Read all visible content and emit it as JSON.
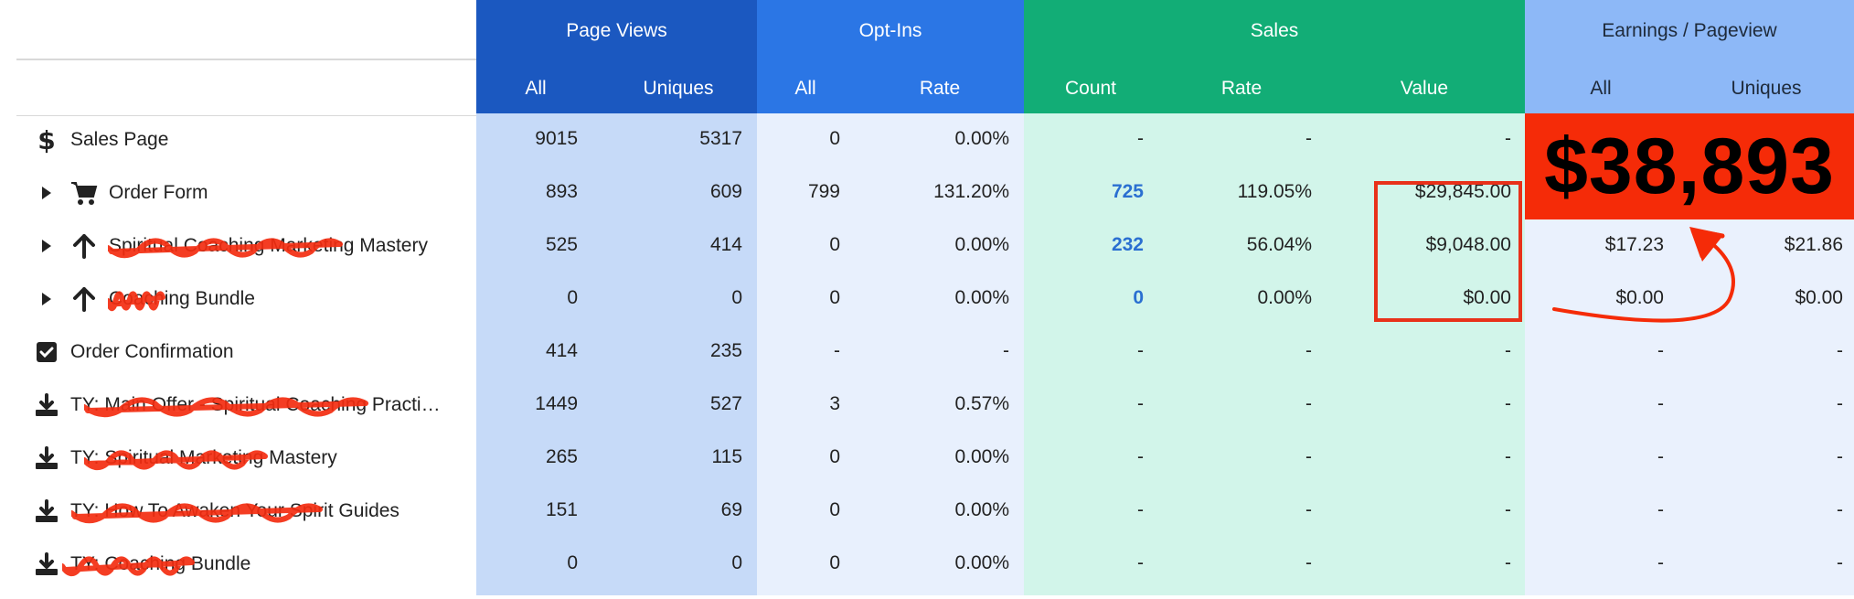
{
  "headers": {
    "page_views": "Page Views",
    "opt_ins": "Opt-Ins",
    "sales": "Sales",
    "earnings": "Earnings / Pageview",
    "sub": {
      "pv_all": "All",
      "pv_uniques": "Uniques",
      "oi_all": "All",
      "oi_rate": "Rate",
      "s_count": "Count",
      "s_rate": "Rate",
      "s_value": "Value",
      "e_all": "All",
      "e_uniques": "Uniques"
    }
  },
  "highlight_total": "$38,893",
  "colors": {
    "page_views_header": "#1b58c0",
    "opt_ins_header": "#2b76e5",
    "sales_header": "#12ad76",
    "earnings_header": "#8db8f7",
    "page_views_body": "#c6daf8",
    "opt_ins_body": "#e8f0fd",
    "sales_body": "#d2f5ea",
    "earnings_body": "#eaf1fd",
    "annotation_red": "#f52b08"
  },
  "rows": [
    {
      "label": "Sales Page",
      "icon": "dollar-icon",
      "expandable": false,
      "pv_all": "9015",
      "pv_uniques": "5317",
      "oi_all": "0",
      "oi_rate": "0.00%",
      "s_count": "-",
      "s_rate": "-",
      "s_value": "-",
      "e_all": "",
      "e_uniques": ""
    },
    {
      "label": "Order Form",
      "icon": "cart-icon",
      "expandable": true,
      "pv_all": "893",
      "pv_uniques": "609",
      "oi_all": "799",
      "oi_rate": "131.20%",
      "s_count": "725",
      "s_rate": "119.05%",
      "s_value": "$29,845.00",
      "e_all": "",
      "e_uniques": ""
    },
    {
      "label": "Spiritual Coaching Marketing Mastery",
      "icon": "arrow-up-icon",
      "expandable": true,
      "pv_all": "525",
      "pv_uniques": "414",
      "oi_all": "0",
      "oi_rate": "0.00%",
      "s_count": "232",
      "s_rate": "56.04%",
      "s_value": "$9,048.00",
      "e_all": "$17.23",
      "e_uniques": "$21.86"
    },
    {
      "label": "Coaching Bundle",
      "icon": "arrow-up-icon",
      "expandable": true,
      "pv_all": "0",
      "pv_uniques": "0",
      "oi_all": "0",
      "oi_rate": "0.00%",
      "s_count": "0",
      "s_rate": "0.00%",
      "s_value": "$0.00",
      "e_all": "$0.00",
      "e_uniques": "$0.00"
    },
    {
      "label": "Order Confirmation",
      "icon": "checkbox-icon",
      "expandable": false,
      "pv_all": "414",
      "pv_uniques": "235",
      "oi_all": "-",
      "oi_rate": "-",
      "s_count": "-",
      "s_rate": "-",
      "s_value": "-",
      "e_all": "-",
      "e_uniques": "-"
    },
    {
      "label": "TY: Main Offer - Spiritual Coaching Practi…",
      "icon": "download-icon",
      "expandable": false,
      "pv_all": "1449",
      "pv_uniques": "527",
      "oi_all": "3",
      "oi_rate": "0.57%",
      "s_count": "-",
      "s_rate": "-",
      "s_value": "-",
      "e_all": "-",
      "e_uniques": "-"
    },
    {
      "label": "TY: Spiritual Marketing Mastery",
      "icon": "download-icon",
      "expandable": false,
      "pv_all": "265",
      "pv_uniques": "115",
      "oi_all": "0",
      "oi_rate": "0.00%",
      "s_count": "-",
      "s_rate": "-",
      "s_value": "-",
      "e_all": "-",
      "e_uniques": "-"
    },
    {
      "label": "TY: How To Awaken Your Spirit Guides",
      "icon": "download-icon",
      "expandable": false,
      "pv_all": "151",
      "pv_uniques": "69",
      "oi_all": "0",
      "oi_rate": "0.00%",
      "s_count": "-",
      "s_rate": "-",
      "s_value": "-",
      "e_all": "-",
      "e_uniques": "-"
    },
    {
      "label": "TY: Coaching Bundle",
      "icon": "download-icon",
      "expandable": false,
      "pv_all": "0",
      "pv_uniques": "0",
      "oi_all": "0",
      "oi_rate": "0.00%",
      "s_count": "-",
      "s_rate": "-",
      "s_value": "-",
      "e_all": "-",
      "e_uniques": "-"
    }
  ]
}
